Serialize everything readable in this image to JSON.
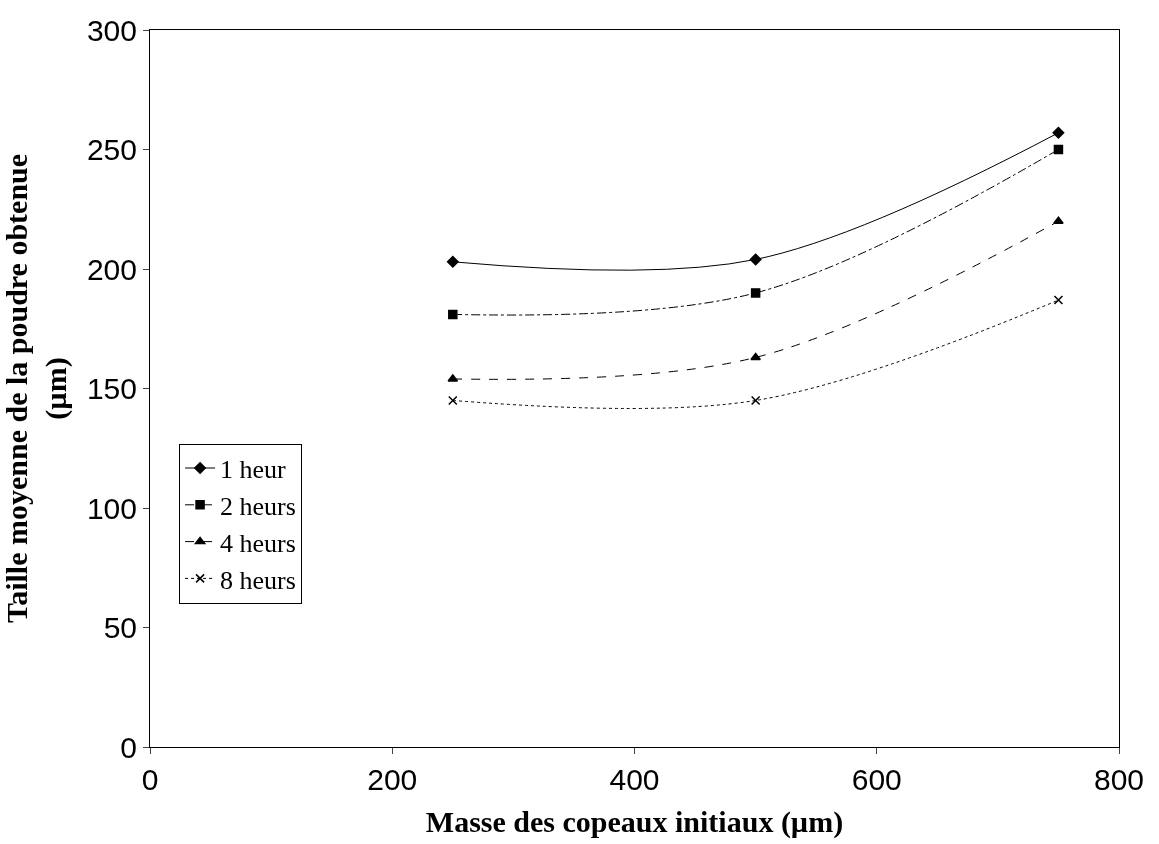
{
  "chart_data": {
    "type": "line",
    "xlabel": "Masse des copeaux initiaux (µm)",
    "ylabel": "Taille moyenne de la poudre obtenue\n(µm)",
    "x": [
      250,
      500,
      750
    ],
    "series": [
      {
        "name": "1 heur",
        "color": "#000000",
        "values": [
          203,
          204,
          257
        ],
        "marker": "diamond",
        "line_style": "solid"
      },
      {
        "name": "2 heurs",
        "color": "#000000",
        "values": [
          181,
          190,
          250
        ],
        "marker": "square",
        "line_style": "dashdot"
      },
      {
        "name": "4 heurs",
        "color": "#000000",
        "values": [
          154,
          163,
          220
        ],
        "marker": "triangle",
        "line_style": "dashed"
      },
      {
        "name": "8 heurs",
        "color": "#000000",
        "values": [
          145,
          145,
          187
        ],
        "marker": "cross",
        "line_style": "dotted"
      }
    ],
    "xlim": [
      0,
      800
    ],
    "xticks": [
      0,
      200,
      400,
      600,
      800
    ],
    "ylim": [
      0,
      300
    ],
    "yticks": [
      0,
      50,
      100,
      150,
      200,
      250,
      300
    ],
    "legend": "left"
  }
}
